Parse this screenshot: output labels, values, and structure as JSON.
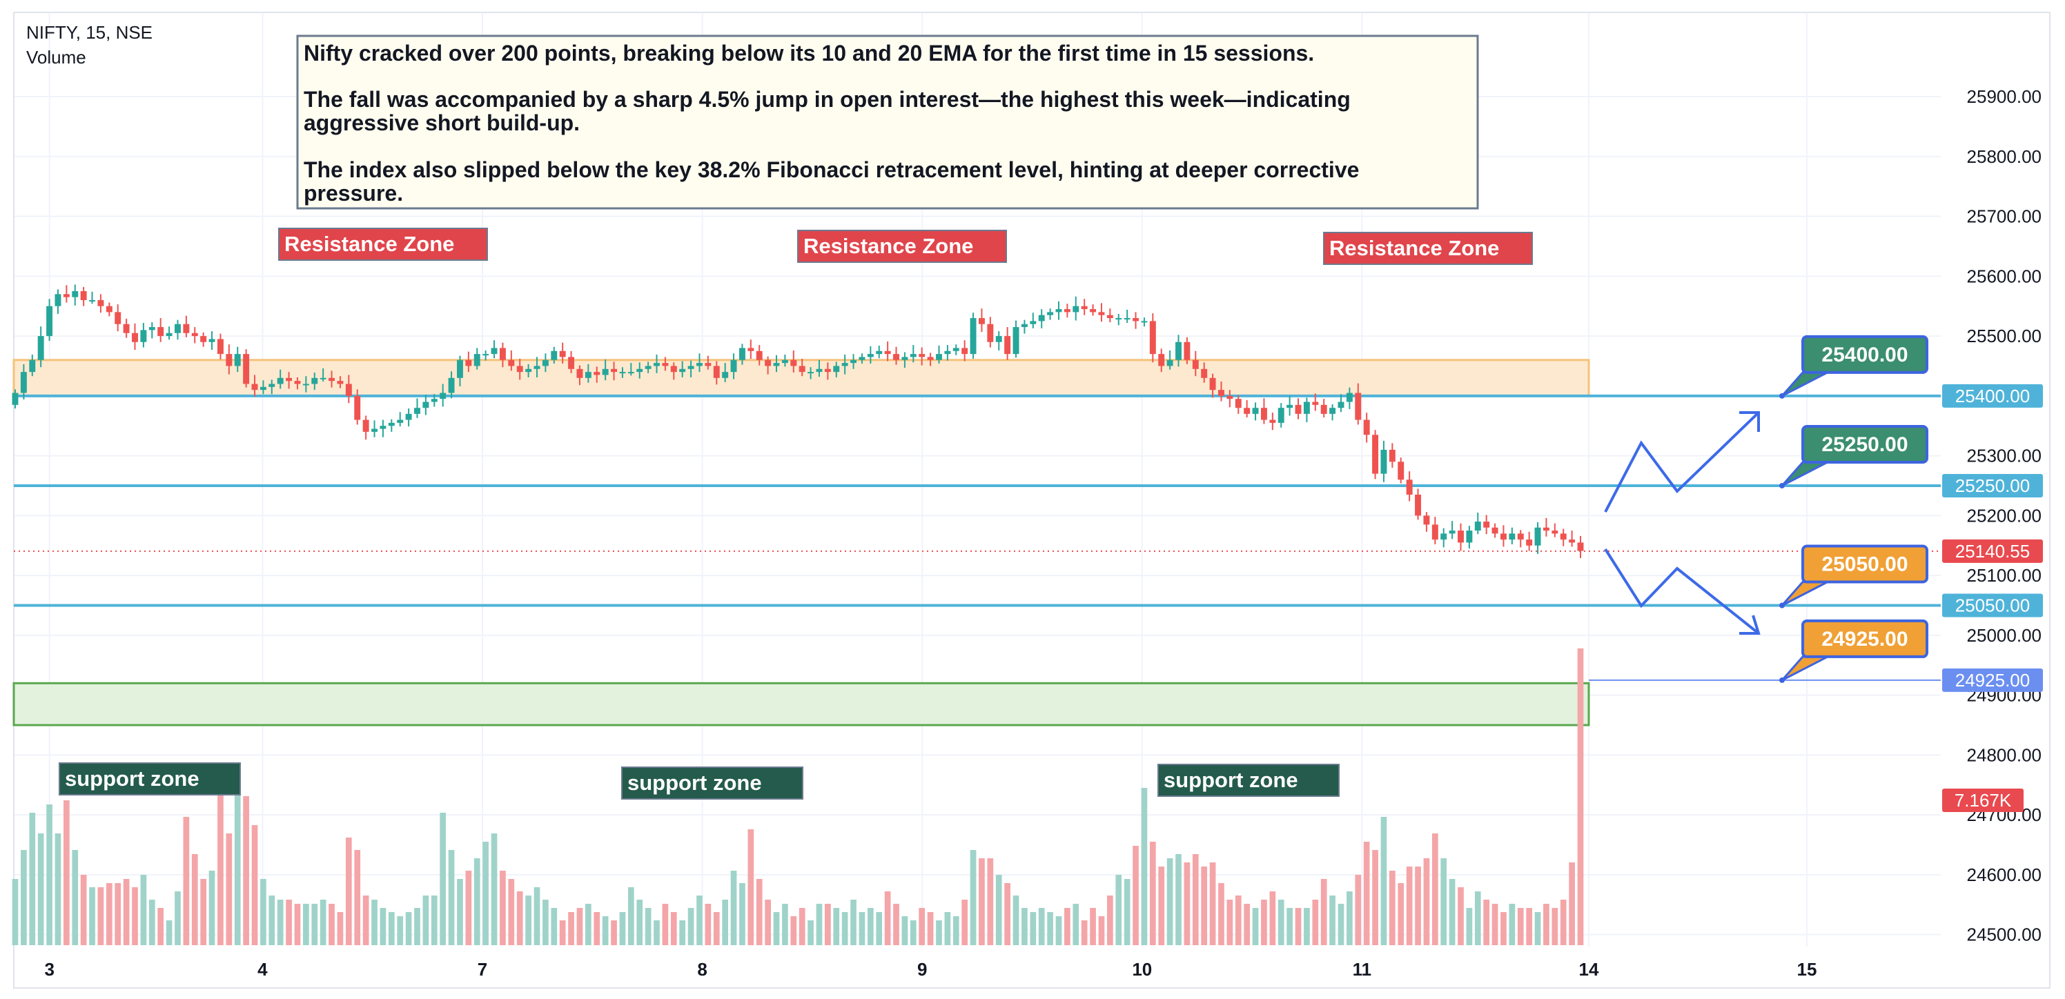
{
  "header": {
    "symbol": "NIFTY, 15, NSE",
    "volume_label": "Volume"
  },
  "note": {
    "lines": [
      "Nifty cracked over 200 points, breaking below its 10 and 20 EMA for the first time in 15 sessions.",
      "The fall was accompanied by a sharp 4.5% jump in open interest—the highest this week—indicating",
      "aggressive short build-up.",
      "The index also slipped below the key 38.2% Fibonacci retracement level, hinting at deeper corrective",
      "pressure."
    ]
  },
  "colors": {
    "up": "#26a69a",
    "down": "#ef5350",
    "vol_up": "#9fd3c9",
    "vol_down": "#f4a5a8",
    "level_line": "#4fb3d9",
    "level_tag": "#4fb3d9",
    "price_tag": "#e84a4f",
    "blue_tag": "#6b8ff0",
    "resistance_fill": "#fde9cf",
    "resistance_border": "#f5c27a",
    "support_fill": "#e3f2dd",
    "support_border": "#5aa84f",
    "resistance_label": "#e0454b",
    "support_label": "#245b4c",
    "callout_green": "#3b8e6f",
    "callout_orange": "#f0a035",
    "callout_border": "#3d64e0",
    "arrow": "#3d6ae8"
  },
  "chart_data": {
    "type": "candlestick",
    "symbol": "NIFTY",
    "interval": "15",
    "exchange": "NSE",
    "y_range": [
      24480,
      25960
    ],
    "y_ticks": [
      "25900.00",
      "25800.00",
      "25700.00",
      "25600.00",
      "25500.00",
      "25400.00",
      "25300.00",
      "25200.00",
      "25100.00",
      "25000.00",
      "24900.00",
      "24800.00",
      "24700.00",
      "24600.00",
      "24500.00"
    ],
    "x_labels": [
      "3",
      "4",
      "7",
      "8",
      "9",
      "10",
      "11",
      "14",
      "15"
    ],
    "last_price": "25140.55",
    "volume_last": "7.167K",
    "levels": [
      "25400.00",
      "25250.00",
      "25050.00",
      "24925.00"
    ],
    "callouts": [
      {
        "label": "25400.00",
        "style": "green"
      },
      {
        "label": "25250.00",
        "style": "green"
      },
      {
        "label": "25050.00",
        "style": "orange"
      },
      {
        "label": "24925.00",
        "style": "orange"
      }
    ],
    "resistance_zone": {
      "low": 25400,
      "high": 25460,
      "label": "Resistance Zone"
    },
    "support_zone": {
      "low": 24850,
      "high": 24920,
      "label": "support zone"
    },
    "closes": [
      25405,
      25440,
      25460,
      25500,
      25550,
      25570,
      25565,
      25575,
      25560,
      25560,
      25550,
      25540,
      25520,
      25505,
      25490,
      25510,
      25515,
      25500,
      25505,
      25520,
      25505,
      25500,
      25490,
      25495,
      25470,
      25450,
      25470,
      25420,
      25410,
      25415,
      25420,
      25430,
      25425,
      25420,
      25420,
      25430,
      25430,
      25425,
      25420,
      25400,
      25360,
      25340,
      25345,
      25350,
      25355,
      25360,
      25370,
      25380,
      25390,
      25395,
      25405,
      25430,
      25460,
      25450,
      25470,
      25470,
      25480,
      25460,
      25450,
      25440,
      25445,
      25450,
      25460,
      25475,
      25465,
      25445,
      25430,
      25440,
      25435,
      25445,
      25440,
      25440,
      25440,
      25445,
      25450,
      25455,
      25450,
      25440,
      25445,
      25450,
      25455,
      25450,
      25430,
      25440,
      25460,
      25480,
      25475,
      25460,
      25450,
      25455,
      25460,
      25450,
      25440,
      25440,
      25445,
      25440,
      25450,
      25455,
      25460,
      25465,
      25470,
      25475,
      25470,
      25460,
      25465,
      25470,
      25465,
      25460,
      25470,
      25475,
      25480,
      25470,
      25530,
      25520,
      25490,
      25500,
      25470,
      25515,
      25520,
      25525,
      25535,
      25540,
      25545,
      25540,
      25550,
      25545,
      25540,
      25535,
      25530,
      25530,
      25530,
      25525,
      25525,
      25470,
      25450,
      25460,
      25490,
      25460,
      25445,
      25430,
      25410,
      25400,
      25395,
      25380,
      25370,
      25380,
      25360,
      25355,
      25380,
      25385,
      25370,
      25390,
      25385,
      25370,
      25380,
      25390,
      25405,
      25360,
      25335,
      25270,
      25310,
      25290,
      25260,
      25235,
      25200,
      25185,
      25160,
      25170,
      25175,
      25155,
      25175,
      25190,
      25180,
      25170,
      25160,
      25170,
      25160,
      25150,
      25180,
      25175,
      25170,
      25160,
      25155,
      25141
    ],
    "volumes": [
      1.6,
      2.3,
      3.2,
      2.7,
      3.4,
      2.7,
      3.5,
      2.3,
      1.7,
      1.4,
      1.4,
      1.5,
      1.5,
      1.6,
      1.4,
      1.7,
      1.1,
      0.9,
      0.6,
      1.3,
      3.1,
      2.2,
      1.6,
      1.8,
      3.8,
      2.7,
      3.8,
      3.6,
      2.9,
      1.6,
      1.2,
      1.1,
      1.1,
      1.0,
      1.0,
      1.0,
      1.1,
      1.0,
      0.8,
      2.6,
      2.3,
      1.2,
      1.1,
      0.9,
      0.8,
      0.7,
      0.8,
      0.9,
      1.2,
      1.2,
      3.2,
      2.3,
      1.6,
      1.8,
      2.1,
      2.5,
      2.7,
      1.8,
      1.6,
      1.3,
      1.2,
      1.4,
      1.1,
      0.9,
      0.6,
      0.8,
      0.9,
      1.0,
      0.8,
      0.7,
      0.6,
      0.8,
      1.4,
      1.1,
      0.9,
      0.6,
      1.0,
      0.8,
      0.6,
      0.9,
      1.2,
      1.0,
      0.8,
      1.1,
      1.8,
      1.5,
      2.8,
      1.6,
      1.1,
      0.8,
      1.0,
      0.7,
      0.9,
      0.6,
      1.0,
      1.0,
      0.9,
      0.8,
      1.1,
      0.8,
      0.9,
      0.8,
      1.3,
      1.0,
      0.7,
      0.6,
      0.9,
      0.8,
      0.6,
      0.8,
      0.7,
      1.1,
      2.3,
      2.1,
      2.1,
      1.7,
      1.5,
      1.2,
      0.9,
      0.8,
      0.9,
      0.8,
      0.7,
      0.9,
      1.0,
      0.6,
      0.9,
      0.7,
      1.2,
      1.7,
      1.6,
      2.4,
      3.8,
      2.5,
      1.9,
      2.1,
      2.2,
      2.0,
      2.2,
      1.9,
      2.0,
      1.5,
      1.1,
      1.2,
      1.0,
      0.9,
      1.1,
      1.3,
      1.1,
      0.9,
      0.9,
      0.9,
      1.1,
      1.6,
      1.2,
      1.0,
      1.3,
      1.7,
      2.5,
      2.3,
      3.1,
      1.8,
      1.5,
      1.9,
      1.9,
      2.1,
      2.7,
      2.1,
      1.6,
      1.4,
      0.9,
      1.3,
      1.1,
      1.0,
      0.8,
      1.0,
      0.9,
      0.9,
      0.8,
      1.0,
      0.9,
      1.1,
      2.0,
      7.17
    ]
  }
}
